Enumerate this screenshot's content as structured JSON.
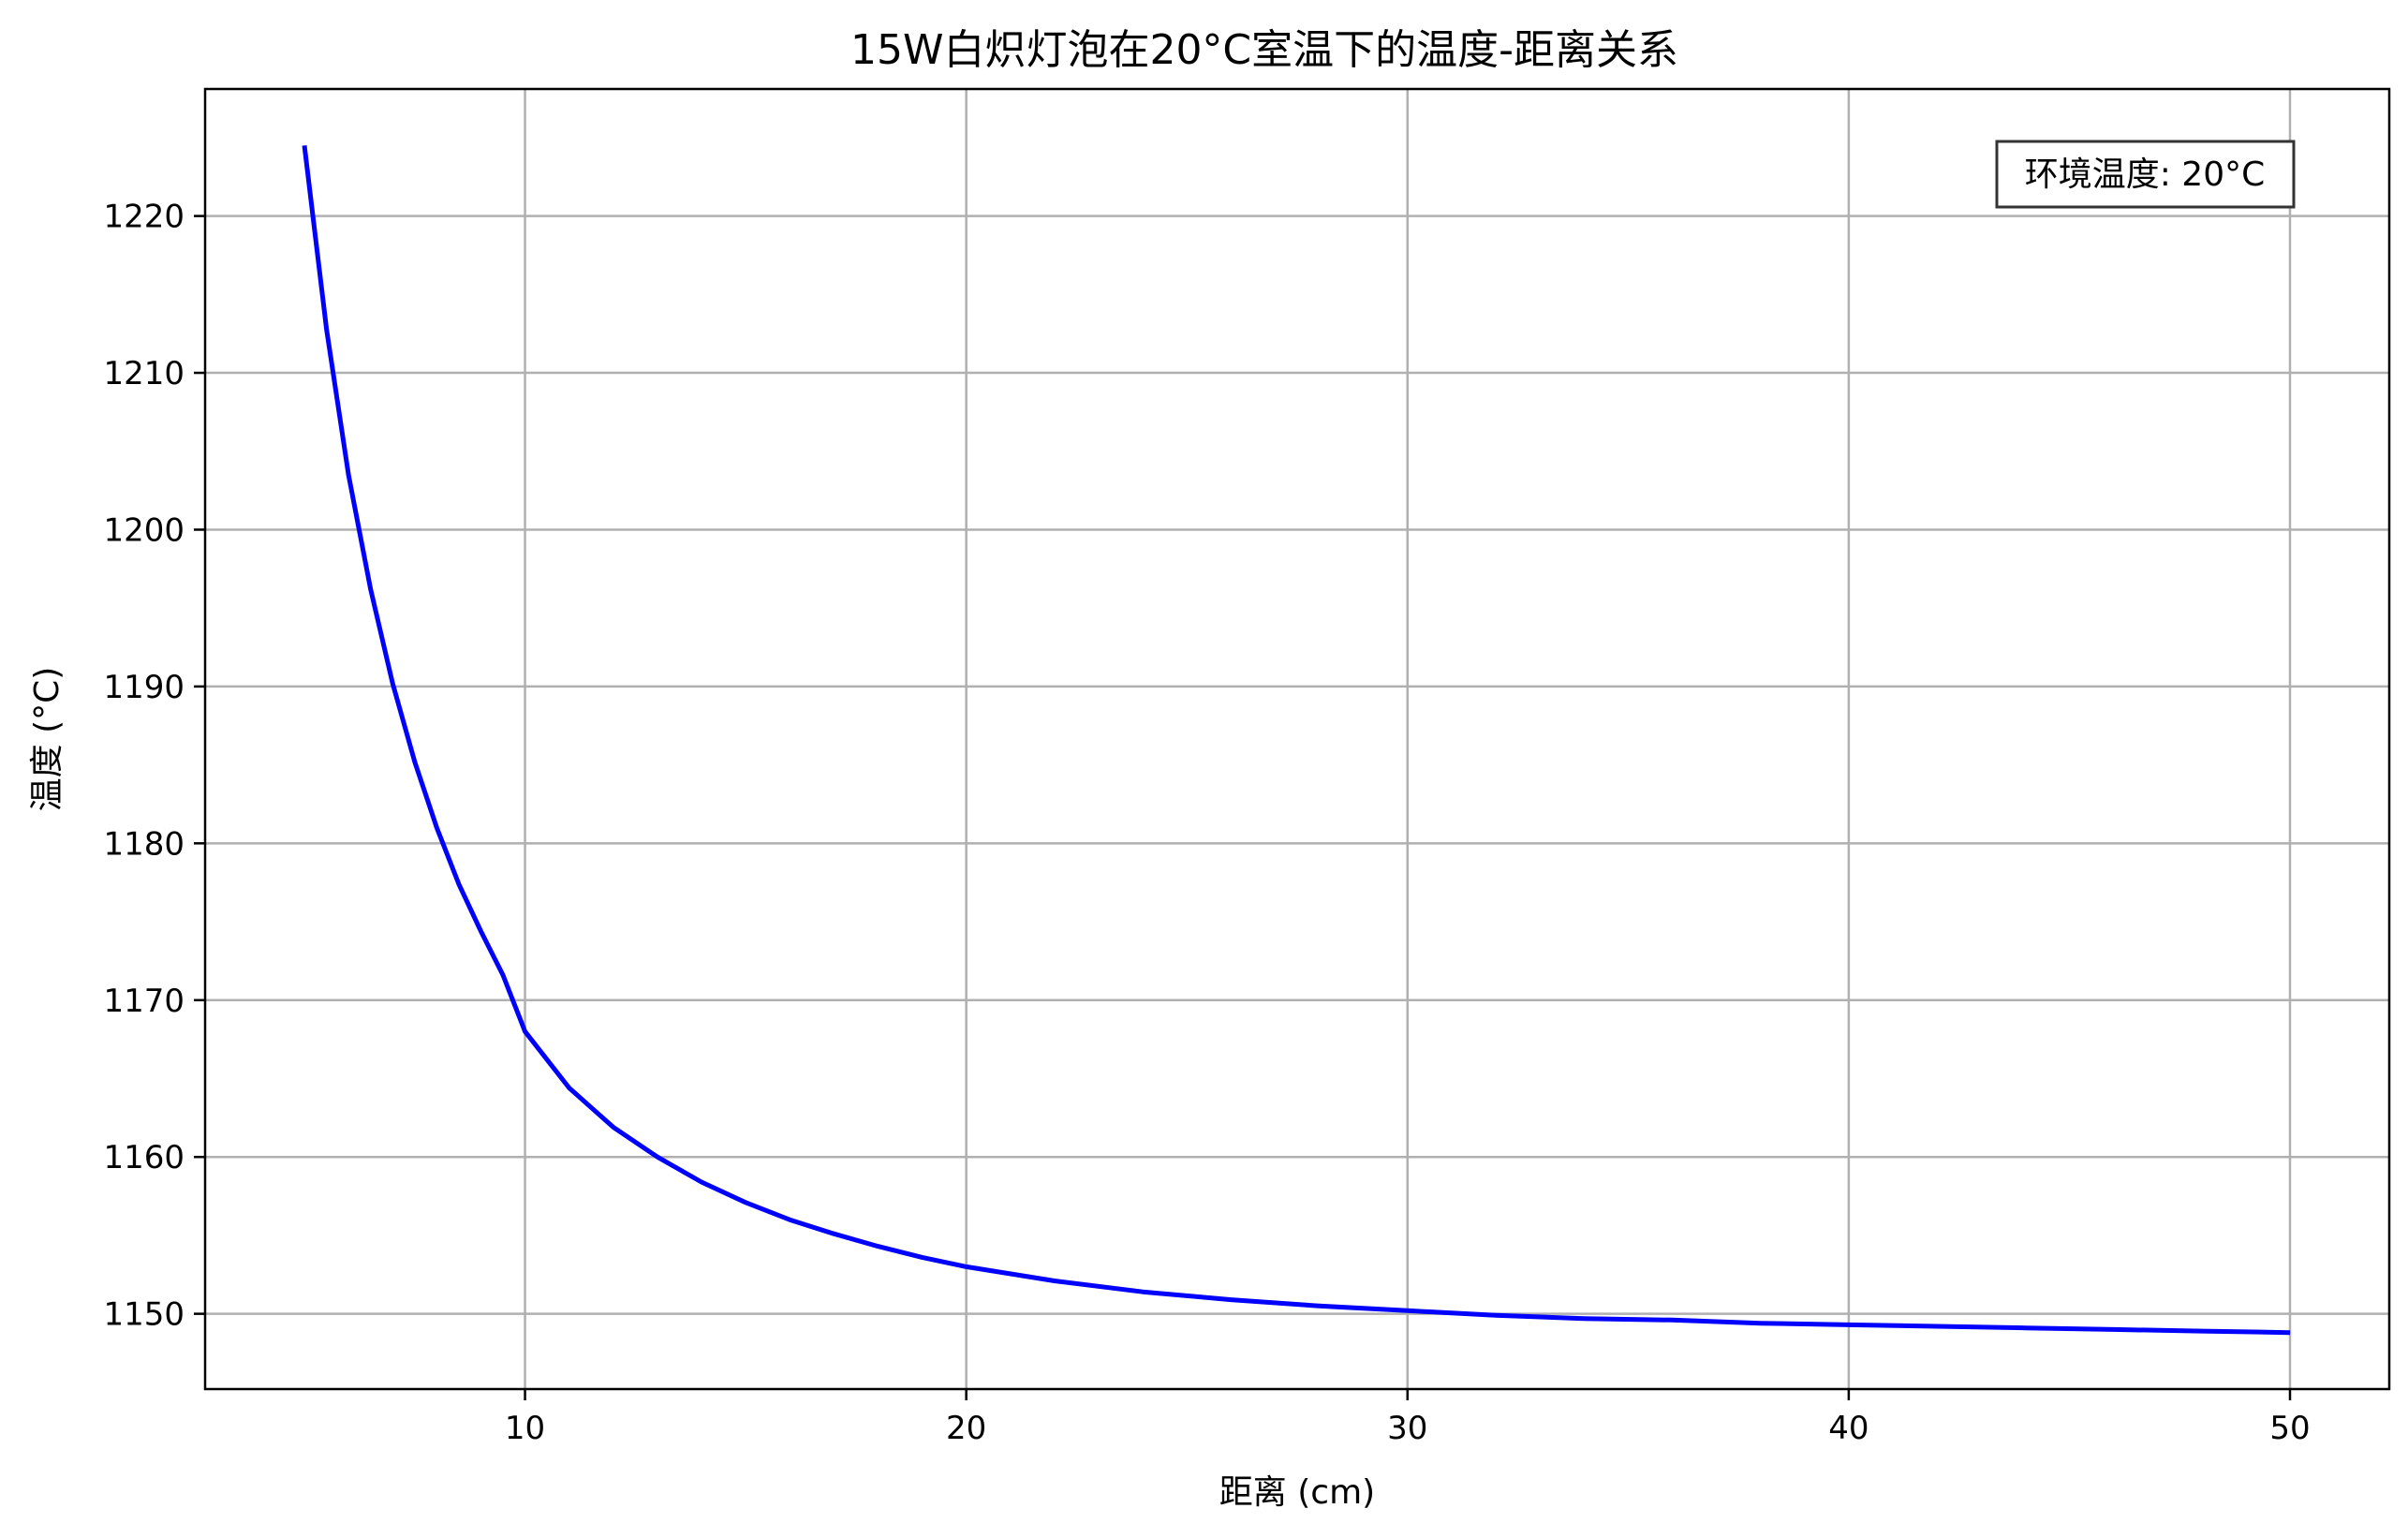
{
  "chart_data": {
    "type": "line",
    "title": "15W白炽灯泡在20°C室温下的温度-距离关系",
    "xlabel": "距离 (cm)",
    "ylabel": "温度 (°C)",
    "xlim": [
      2.75,
      52.25
    ],
    "ylim": [
      1145.2,
      1228.1
    ],
    "grid": true,
    "xticks": [
      10,
      20,
      30,
      40,
      50
    ],
    "yticks": [
      1150,
      1160,
      1170,
      1180,
      1190,
      1200,
      1210,
      1220
    ],
    "annotation": "环境温度: 20°C",
    "annotation_placement": "top-right",
    "series": [
      {
        "name": "温度",
        "color": "#0000ff",
        "x": [
          5,
          5.5,
          6,
          6.5,
          7,
          7.5,
          8,
          8.5,
          9,
          9.5,
          10,
          11,
          12,
          13,
          14,
          15,
          16,
          17,
          18,
          19,
          20,
          22,
          24,
          26,
          28,
          30,
          32,
          34,
          36,
          38,
          40,
          42,
          44,
          46,
          48,
          50
        ],
        "y": [
          1224.5,
          1212.8,
          1203.5,
          1196.2,
          1190.2,
          1185.2,
          1181.0,
          1177.4,
          1174.4,
          1171.6,
          1168.0,
          1164.4,
          1161.9,
          1160.0,
          1158.4,
          1157.1,
          1156.0,
          1155.1,
          1154.3,
          1153.6,
          1153.0,
          1152.1,
          1151.4,
          1150.9,
          1150.5,
          1150.2,
          1149.9,
          1149.7,
          1149.6,
          1149.4,
          1149.3,
          1149.2,
          1149.1,
          1149.0,
          1148.9,
          1148.8
        ]
      }
    ]
  }
}
